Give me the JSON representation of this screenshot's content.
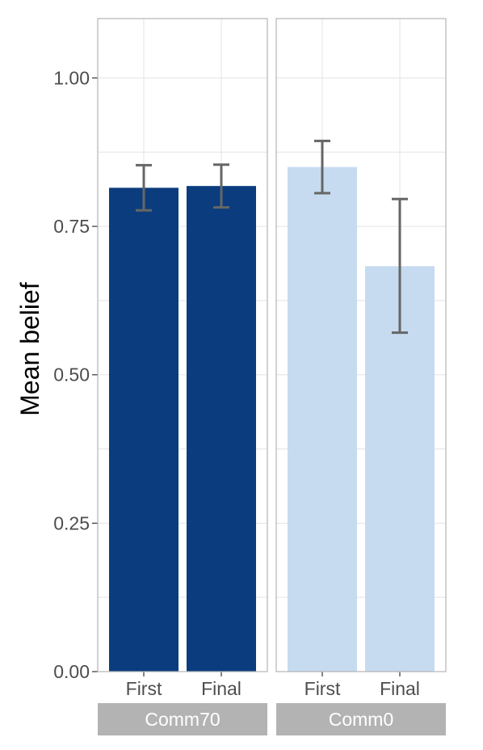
{
  "chart_data": {
    "type": "bar",
    "facets": [
      "Comm70",
      "Comm0"
    ],
    "categories": [
      "First",
      "Final"
    ],
    "series": [
      {
        "facet": "Comm70",
        "values": [
          0.815,
          0.818
        ],
        "error_low": [
          0.777,
          0.782
        ],
        "error_high": [
          0.853,
          0.854
        ],
        "color": "#0b3d7e"
      },
      {
        "facet": "Comm0",
        "values": [
          0.85,
          0.683
        ],
        "error_low": [
          0.806,
          0.571
        ],
        "error_high": [
          0.894,
          0.796
        ],
        "color": "#c6dbf0"
      }
    ],
    "ylabel": "Mean belief",
    "xlabel": "",
    "ylim": [
      0,
      1.1
    ],
    "yticks": [
      "0.00",
      "0.25",
      "0.50",
      "0.75",
      "1.00"
    ],
    "grid": true,
    "strip_color": "#b3b3b3"
  }
}
